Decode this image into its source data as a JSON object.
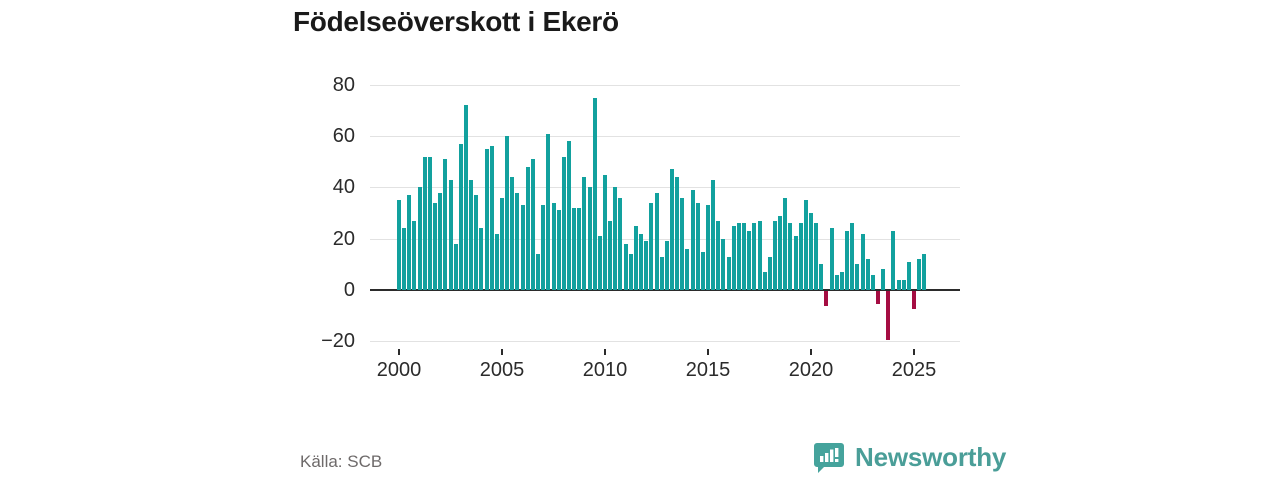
{
  "title": "Födelseöverskott i Ekerö",
  "source": "Källa: SCB",
  "brand": {
    "name": "Newsworthy",
    "color": "#4a9e98",
    "icon": "newsworthy-speech-bubble-chart-icon"
  },
  "chart_data": {
    "type": "bar",
    "title": "Födelseöverskott i Ekerö",
    "frequency": "quarterly",
    "start_year": 2000,
    "end_label": "2025 Q3",
    "xlabel": "",
    "ylabel": "",
    "x_tick_years": [
      2000,
      2005,
      2010,
      2015,
      2020,
      2025
    ],
    "yticks": [
      -20,
      0,
      20,
      40,
      60,
      80
    ],
    "ylim": [
      -23,
      80
    ],
    "grid": true,
    "legend": "none",
    "bar_color_positive": "#12a19e",
    "bar_color_negative": "#a50d42",
    "values": [
      35,
      24,
      37,
      27,
      40,
      52,
      52,
      34,
      38,
      51,
      43,
      18,
      57,
      72,
      43,
      37,
      24,
      55,
      56,
      22,
      36,
      60,
      44,
      38,
      33,
      48,
      51,
      14,
      33,
      61,
      34,
      31,
      52,
      58,
      32,
      32,
      44,
      40,
      75,
      21,
      45,
      27,
      40,
      36,
      18,
      14,
      25,
      22,
      19,
      34,
      38,
      13,
      19,
      47,
      44,
      36,
      16,
      39,
      34,
      15,
      33,
      43,
      27,
      20,
      13,
      25,
      26,
      26,
      23,
      26,
      27,
      7,
      13,
      27,
      29,
      36,
      26,
      21,
      26,
      35,
      30,
      26,
      10,
      -6,
      24,
      6,
      7,
      23,
      26,
      10,
      22,
      12,
      6,
      -5,
      8,
      -19,
      23,
      4,
      4,
      11,
      -7,
      12,
      14
    ]
  }
}
